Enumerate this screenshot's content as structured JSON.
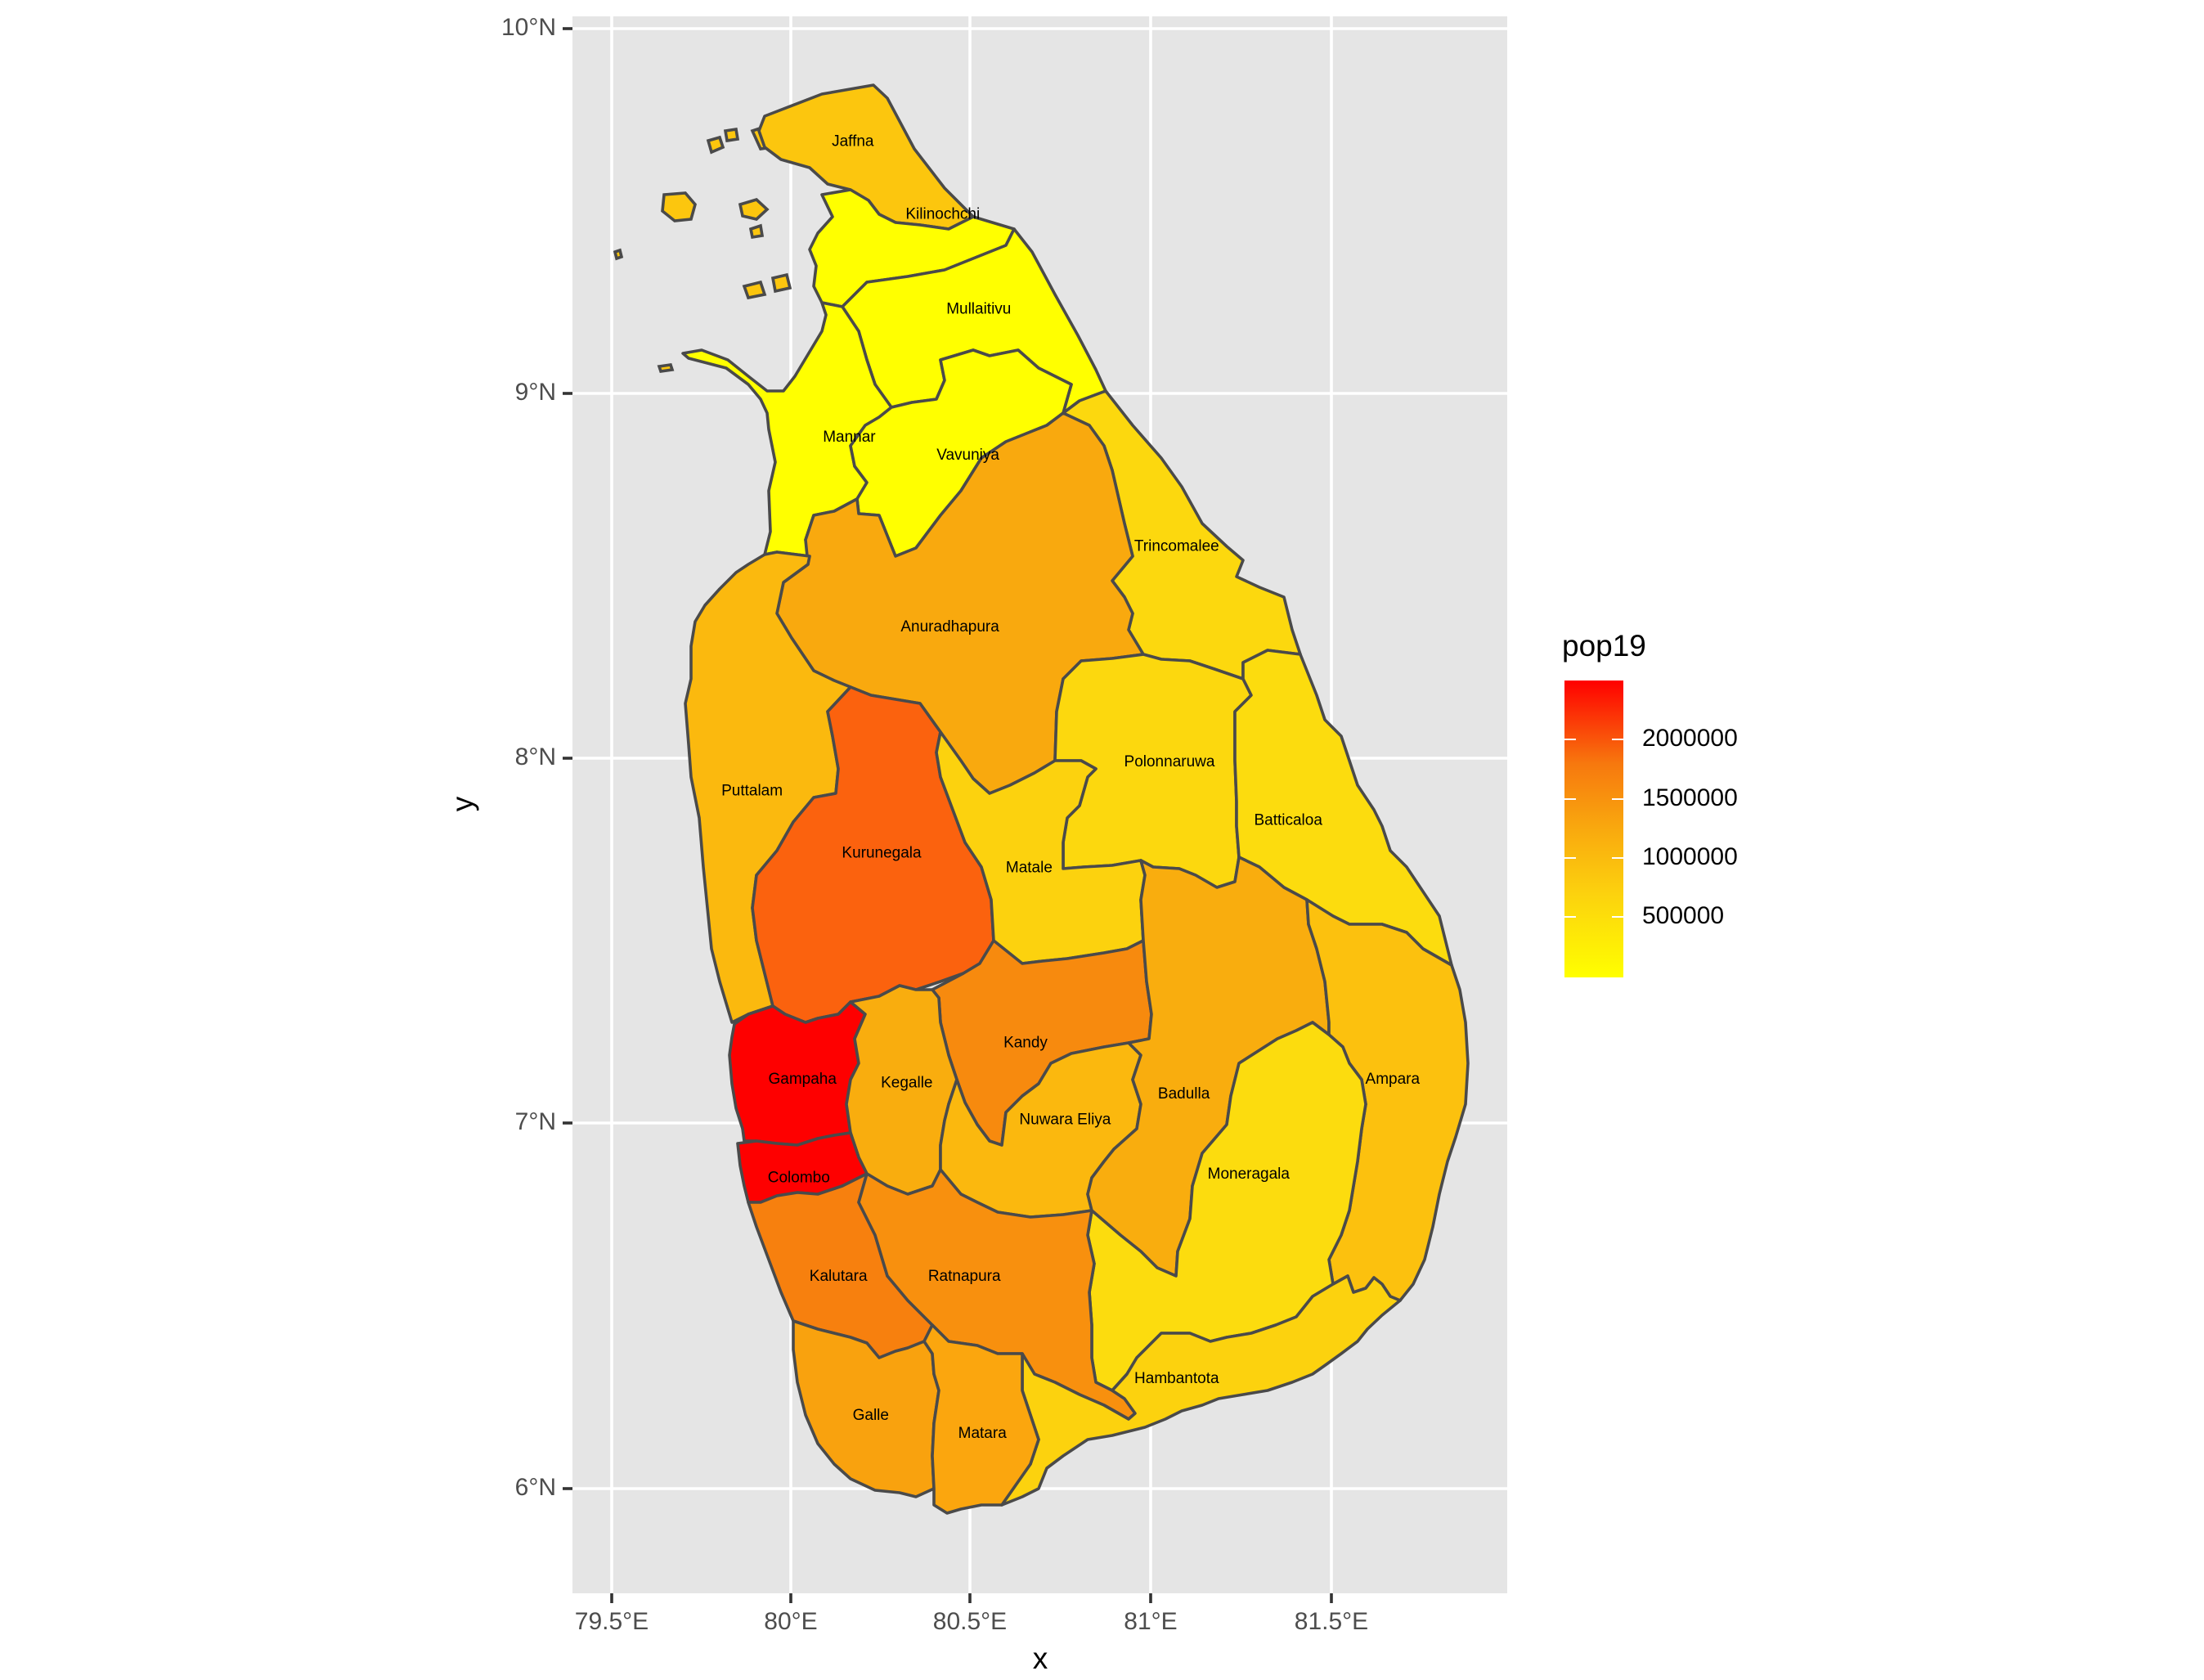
{
  "chart_data": {
    "type": "choropleth",
    "xlabel": "x",
    "ylabel": "y",
    "xlim": [
      79.41,
      81.96
    ],
    "ylim": [
      5.73,
      10.03
    ],
    "x_ticks": [
      "79.5°E",
      "80°E",
      "80.5°E",
      "81°E",
      "81.5°E"
    ],
    "y_ticks": [
      "6°N",
      "7°N",
      "8°N",
      "9°N",
      "10°N"
    ],
    "grid": true,
    "legend": {
      "title": "pop19",
      "placement": "right",
      "labels": [
        "2000000",
        "1500000",
        "1000000",
        "500000"
      ],
      "low_color": "#ffff00",
      "high_color": "#ff0000"
    },
    "districts": [
      {
        "name": "Jaffna",
        "lon": 80.17,
        "lat": 9.69
      },
      {
        "name": "Kilinochchi",
        "lon": 80.42,
        "lat": 9.49
      },
      {
        "name": "Mullaitivu",
        "lon": 80.52,
        "lat": 9.23
      },
      {
        "name": "Mannar",
        "lon": 80.16,
        "lat": 8.88
      },
      {
        "name": "Vavuniya",
        "lon": 80.49,
        "lat": 8.83
      },
      {
        "name": "Trincomalee",
        "lon": 81.07,
        "lat": 8.58
      },
      {
        "name": "Anuradhapura",
        "lon": 80.44,
        "lat": 8.36
      },
      {
        "name": "Polonnaruwa",
        "lon": 81.05,
        "lat": 7.99
      },
      {
        "name": "Puttalam",
        "lon": 79.89,
        "lat": 7.91
      },
      {
        "name": "Batticaloa",
        "lon": 81.38,
        "lat": 7.83
      },
      {
        "name": "Kurunegala",
        "lon": 80.25,
        "lat": 7.74
      },
      {
        "name": "Matale",
        "lon": 80.66,
        "lat": 7.7
      },
      {
        "name": "Kandy",
        "lon": 80.65,
        "lat": 7.22
      },
      {
        "name": "Gampaha",
        "lon": 80.03,
        "lat": 7.12
      },
      {
        "name": "Kegalle",
        "lon": 80.32,
        "lat": 7.11
      },
      {
        "name": "Badulla",
        "lon": 81.09,
        "lat": 7.08
      },
      {
        "name": "Ampara",
        "lon": 81.67,
        "lat": 7.12
      },
      {
        "name": "Nuwara Eliya",
        "lon": 80.76,
        "lat": 7.01
      },
      {
        "name": "Moneragala",
        "lon": 81.27,
        "lat": 6.86
      },
      {
        "name": "Colombo",
        "lon": 80.02,
        "lat": 6.85
      },
      {
        "name": "Kalutara",
        "lon": 80.13,
        "lat": 6.58
      },
      {
        "name": "Ratnapura",
        "lon": 80.48,
        "lat": 6.58
      },
      {
        "name": "Hambantota",
        "lon": 81.07,
        "lat": 6.3
      },
      {
        "name": "Galle",
        "lon": 80.22,
        "lat": 6.2
      },
      {
        "name": "Matara",
        "lon": 80.53,
        "lat": 6.15
      }
    ]
  }
}
